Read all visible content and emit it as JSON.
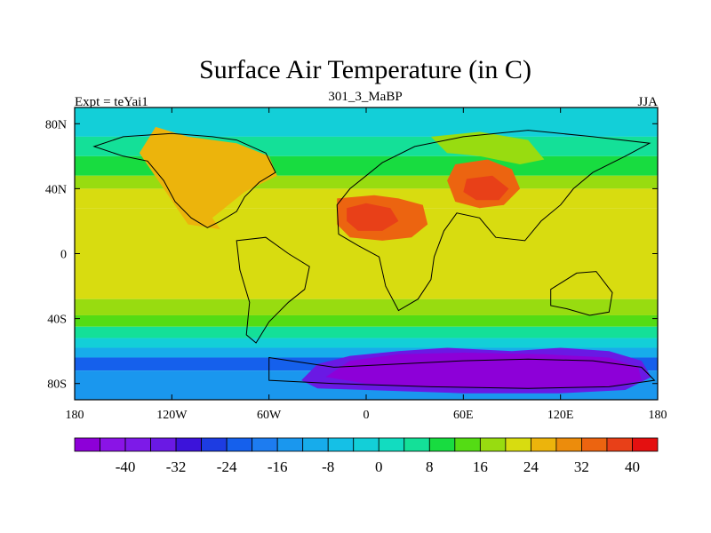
{
  "chart_data": {
    "type": "heatmap",
    "title": "Surface Air Temperature (in C)",
    "subtitle": "301_3_MaBP",
    "left_label": "Expt = teYai1",
    "right_label": "JJA",
    "xlabel": "",
    "ylabel": "",
    "xlim": [
      -180,
      180
    ],
    "ylim": [
      -90,
      90
    ],
    "x_ticks": [
      {
        "value": -180,
        "label": "180"
      },
      {
        "value": -120,
        "label": "120W"
      },
      {
        "value": -60,
        "label": "60W"
      },
      {
        "value": 0,
        "label": "0"
      },
      {
        "value": 60,
        "label": "60E"
      },
      {
        "value": 120,
        "label": "120E"
      },
      {
        "value": 180,
        "label": "180"
      }
    ],
    "y_ticks": [
      {
        "value": 80,
        "label": "80N"
      },
      {
        "value": 40,
        "label": "40N"
      },
      {
        "value": 0,
        "label": "0"
      },
      {
        "value": -40,
        "label": "40S"
      },
      {
        "value": -80,
        "label": "80S"
      }
    ],
    "colorbar": {
      "levels": [
        -44,
        -40,
        -36,
        -32,
        -28,
        -24,
        -20,
        -16,
        -12,
        -8,
        -4,
        0,
        4,
        8,
        12,
        16,
        20,
        24,
        28,
        32,
        36,
        40,
        44
      ],
      "colors": [
        "#8d00d8",
        "#8a14e6",
        "#7d1ae8",
        "#6a19e4",
        "#3c13da",
        "#1d3ce2",
        "#1560ec",
        "#1d7cf0",
        "#1a97ee",
        "#17aceb",
        "#15c0e6",
        "#13cfd8",
        "#12dcc0",
        "#14e098",
        "#18dc40",
        "#54dc14",
        "#98dc10",
        "#d8dc10",
        "#ecb40c",
        "#ec8c0c",
        "#ec6410",
        "#e84018",
        "#e41010"
      ],
      "tick_labels": [
        {
          "value": -40,
          "label": "-40"
        },
        {
          "value": -32,
          "label": "-32"
        },
        {
          "value": -24,
          "label": "-24"
        },
        {
          "value": -16,
          "label": "-16"
        },
        {
          "value": -8,
          "label": "-8"
        },
        {
          "value": 0,
          "label": "0"
        },
        {
          "value": 8,
          "label": "8"
        },
        {
          "value": 16,
          "label": "16"
        },
        {
          "value": 24,
          "label": "24"
        },
        {
          "value": 32,
          "label": "32"
        },
        {
          "value": 40,
          "label": "40"
        }
      ]
    },
    "bands": [
      {
        "lat_min": 72,
        "lat_max": 90,
        "value": 2
      },
      {
        "lat_min": 60,
        "lat_max": 72,
        "value": 10
      },
      {
        "lat_min": 48,
        "lat_max": 60,
        "value": 14
      },
      {
        "lat_min": 40,
        "lat_max": 48,
        "value": 20
      },
      {
        "lat_min": 28,
        "lat_max": 40,
        "value": 24
      },
      {
        "lat_min": -28,
        "lat_max": 28,
        "value": 27
      },
      {
        "lat_min": -38,
        "lat_max": -28,
        "value": 22
      },
      {
        "lat_min": -45,
        "lat_max": -38,
        "value": 17
      },
      {
        "lat_min": -52,
        "lat_max": -45,
        "value": 10
      },
      {
        "lat_min": -58,
        "lat_max": -52,
        "value": 2
      },
      {
        "lat_min": -64,
        "lat_max": -58,
        "value": -8
      },
      {
        "lat_min": -72,
        "lat_max": -64,
        "value": -20
      },
      {
        "lat_min": -90,
        "lat_max": -72,
        "value": -10
      }
    ],
    "regions": [
      {
        "region": "antarctica-outer",
        "value": -30,
        "polygon": [
          [
            -40,
            -78
          ],
          [
            -30,
            -68
          ],
          [
            -10,
            -63
          ],
          [
            20,
            -60
          ],
          [
            50,
            -58
          ],
          [
            90,
            -60
          ],
          [
            120,
            -58
          ],
          [
            150,
            -60
          ],
          [
            170,
            -66
          ],
          [
            176,
            -76
          ],
          [
            160,
            -84
          ],
          [
            120,
            -86
          ],
          [
            60,
            -86
          ],
          [
            0,
            -84
          ],
          [
            -30,
            -83
          ]
        ]
      },
      {
        "region": "antarctica-interior",
        "value": -44,
        "polygon": [
          [
            -25,
            -76
          ],
          [
            -10,
            -66
          ],
          [
            20,
            -62
          ],
          [
            60,
            -61
          ],
          [
            110,
            -62
          ],
          [
            150,
            -64
          ],
          [
            168,
            -70
          ],
          [
            170,
            -78
          ],
          [
            150,
            -82
          ],
          [
            100,
            -83
          ],
          [
            40,
            -82
          ],
          [
            0,
            -80
          ]
        ]
      },
      {
        "region": "north-america-warm",
        "value": 28,
        "polygon": [
          [
            -130,
            78
          ],
          [
            -110,
            72
          ],
          [
            -80,
            68
          ],
          [
            -60,
            60
          ],
          [
            -55,
            48
          ],
          [
            -75,
            38
          ],
          [
            -95,
            22
          ],
          [
            -90,
            15
          ],
          [
            -110,
            18
          ],
          [
            -125,
            40
          ],
          [
            -140,
            62
          ]
        ]
      },
      {
        "region": "africa-hot",
        "value": 38,
        "polygon": [
          [
            -18,
            34
          ],
          [
            5,
            36
          ],
          [
            20,
            34
          ],
          [
            35,
            30
          ],
          [
            38,
            18
          ],
          [
            28,
            10
          ],
          [
            10,
            8
          ],
          [
            -10,
            10
          ],
          [
            -18,
            18
          ]
        ]
      },
      {
        "region": "africa-core",
        "value": 42,
        "polygon": [
          [
            -12,
            28
          ],
          [
            0,
            31
          ],
          [
            15,
            28
          ],
          [
            20,
            20
          ],
          [
            10,
            14
          ],
          [
            -5,
            14
          ],
          [
            -12,
            20
          ]
        ]
      },
      {
        "region": "asia-hot",
        "value": 36,
        "polygon": [
          [
            55,
            55
          ],
          [
            75,
            58
          ],
          [
            90,
            52
          ],
          [
            95,
            40
          ],
          [
            85,
            30
          ],
          [
            70,
            28
          ],
          [
            55,
            32
          ],
          [
            50,
            45
          ]
        ]
      },
      {
        "region": "asia-core",
        "value": 42,
        "polygon": [
          [
            62,
            46
          ],
          [
            78,
            48
          ],
          [
            88,
            40
          ],
          [
            82,
            33
          ],
          [
            68,
            33
          ],
          [
            60,
            38
          ]
        ]
      },
      {
        "region": "siberia-warm",
        "value": 22,
        "polygon": [
          [
            40,
            72
          ],
          [
            70,
            75
          ],
          [
            100,
            70
          ],
          [
            110,
            58
          ],
          [
            95,
            55
          ],
          [
            70,
            60
          ],
          [
            50,
            62
          ]
        ]
      }
    ],
    "continents": [
      {
        "name": "north-america",
        "polygon": [
          [
            -168,
            66
          ],
          [
            -150,
            72
          ],
          [
            -120,
            74
          ],
          [
            -95,
            72
          ],
          [
            -80,
            70
          ],
          [
            -62,
            62
          ],
          [
            -56,
            50
          ],
          [
            -66,
            44
          ],
          [
            -75,
            35
          ],
          [
            -80,
            26
          ],
          [
            -90,
            20
          ],
          [
            -98,
            16
          ],
          [
            -108,
            22
          ],
          [
            -118,
            32
          ],
          [
            -125,
            45
          ],
          [
            -135,
            57
          ],
          [
            -150,
            60
          ]
        ]
      },
      {
        "name": "south-america",
        "polygon": [
          [
            -80,
            8
          ],
          [
            -62,
            10
          ],
          [
            -48,
            0
          ],
          [
            -35,
            -8
          ],
          [
            -38,
            -22
          ],
          [
            -48,
            -30
          ],
          [
            -60,
            -42
          ],
          [
            -68,
            -55
          ],
          [
            -74,
            -50
          ],
          [
            -72,
            -30
          ],
          [
            -78,
            -10
          ]
        ]
      },
      {
        "name": "africa-eurasia",
        "polygon": [
          [
            -18,
            30
          ],
          [
            -10,
            40
          ],
          [
            0,
            48
          ],
          [
            10,
            56
          ],
          [
            30,
            66
          ],
          [
            60,
            72
          ],
          [
            100,
            76
          ],
          [
            140,
            72
          ],
          [
            175,
            68
          ],
          [
            160,
            60
          ],
          [
            140,
            50
          ],
          [
            128,
            40
          ],
          [
            120,
            30
          ],
          [
            108,
            20
          ],
          [
            98,
            8
          ],
          [
            80,
            10
          ],
          [
            70,
            22
          ],
          [
            56,
            25
          ],
          [
            48,
            14
          ],
          [
            42,
            -2
          ],
          [
            40,
            -16
          ],
          [
            32,
            -28
          ],
          [
            20,
            -35
          ],
          [
            12,
            -20
          ],
          [
            8,
            -2
          ],
          [
            -5,
            5
          ],
          [
            -17,
            12
          ]
        ]
      },
      {
        "name": "australia",
        "polygon": [
          [
            114,
            -22
          ],
          [
            130,
            -12
          ],
          [
            142,
            -11
          ],
          [
            152,
            -24
          ],
          [
            150,
            -36
          ],
          [
            138,
            -38
          ],
          [
            124,
            -34
          ],
          [
            114,
            -32
          ]
        ]
      },
      {
        "name": "antarctica",
        "polygon": [
          [
            -60,
            -64
          ],
          [
            -20,
            -70
          ],
          [
            20,
            -68
          ],
          [
            60,
            -66
          ],
          [
            100,
            -65
          ],
          [
            140,
            -66
          ],
          [
            170,
            -70
          ],
          [
            178,
            -78
          ],
          [
            150,
            -82
          ],
          [
            100,
            -83
          ],
          [
            40,
            -82
          ],
          [
            -20,
            -80
          ],
          [
            -60,
            -78
          ]
        ]
      }
    ]
  }
}
